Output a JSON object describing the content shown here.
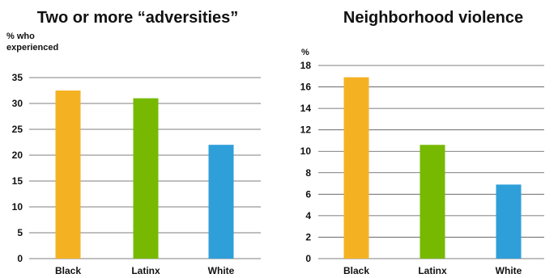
{
  "chart_data": [
    {
      "type": "bar",
      "title": "Two or more “adversities”",
      "ylabel_lines": [
        "% who",
        "experienced"
      ],
      "categories": [
        "Black",
        "Latinx",
        "White"
      ],
      "values": [
        32.5,
        31,
        22
      ],
      "colors": [
        "#F4B223",
        "#76B900",
        "#2E9FD9"
      ],
      "ylim": [
        0,
        35
      ],
      "yticks": [
        0,
        5,
        10,
        15,
        20,
        25,
        30,
        35
      ],
      "grid": true
    },
    {
      "type": "bar",
      "title": "Neighborhood violence",
      "ylabel_lines": [
        "%"
      ],
      "categories": [
        "Black",
        "Latinx",
        "White"
      ],
      "values": [
        16.9,
        10.6,
        6.9
      ],
      "colors": [
        "#F4B223",
        "#76B900",
        "#2E9FD9"
      ],
      "ylim": [
        0,
        18
      ],
      "yticks": [
        0,
        2,
        4,
        6,
        8,
        10,
        12,
        14,
        16,
        18
      ],
      "grid": true
    }
  ]
}
